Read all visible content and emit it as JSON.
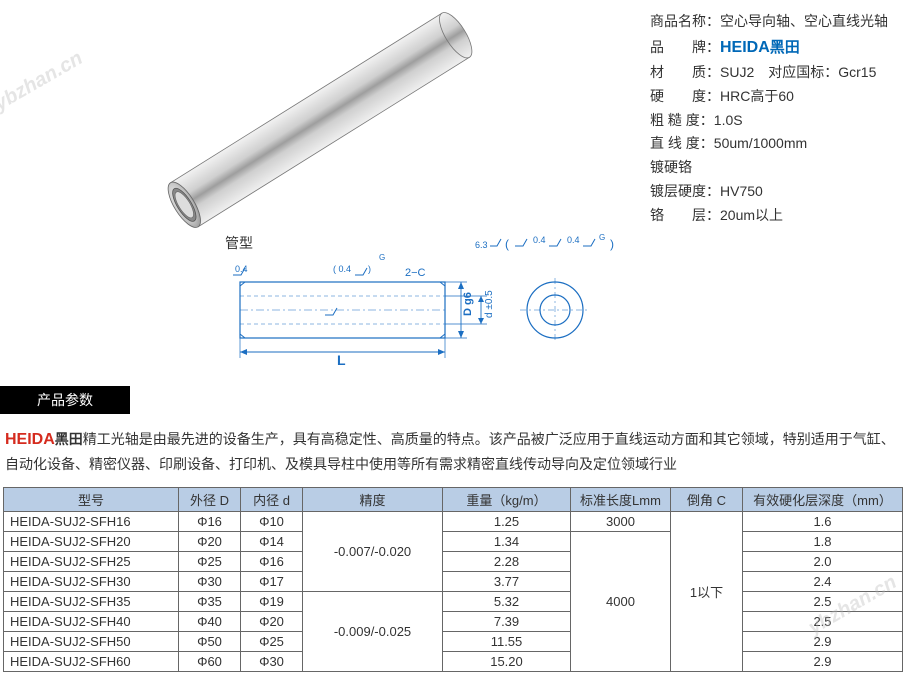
{
  "watermark": "ybzhan.cn",
  "specs": {
    "name_label": "商品名称：",
    "name_value": "空心导向轴、空心直线光轴",
    "brand_label": "品　　牌：",
    "brand_value_blue": "HEIDA",
    "brand_value_black": "黑田",
    "material_label": "材　　质：",
    "material_value": "SUJ2　对应国标：Gcr15",
    "hardness_label": "硬　　度：",
    "hardness_value": "HRC高于60",
    "rough_label": "粗 糙 度：",
    "rough_value": "1.0S",
    "straight_label": "直 线 度：",
    "straight_value": "50um/1000mm",
    "chrome": "镀硬铬",
    "chrome_hardness": "镀层硬度：HV750",
    "chrome_layer": "铬　　层：20um以上"
  },
  "diagram": {
    "type_label": "管型",
    "dim_L": "L",
    "dim_D": "D g6",
    "dim_d": "d ±0.5",
    "chamfer": "2−C",
    "surf1": "0.4",
    "surf2": "0.4",
    "surf3": "6.3",
    "surf4": "0.4",
    "surf5": "0.4",
    "g": "G"
  },
  "params_title": "产品参数",
  "desc": {
    "brand_red": "HEIDA",
    "brand_bold": "黑田",
    "text": "精工光轴是由最先进的设备生产，具有高稳定性、高质量的特点。该产品被广泛应用于直线运动方面和其它领域，特别适用于气缸、自动化设备、精密仪器、印刷设备、打印机、及模具导柱中使用等所有需求精密直线传动导向及定位领域行业"
  },
  "table": {
    "headers": [
      "型号",
      "外径 D",
      "内径 d",
      "精度",
      "重量（kg/m）",
      "标准长度Lmm",
      "倒角 C",
      "有效硬化层深度（mm）"
    ],
    "precision_group1": "-0.007/-0.020",
    "precision_group2": "-0.009/-0.025",
    "length_3000": "3000",
    "length_4000": "4000",
    "chamfer_all": "1以下",
    "rows": [
      {
        "model": "HEIDA-SUJ2-SFH16",
        "D": "Φ16",
        "d": "Φ10",
        "w": "1.25",
        "depth": "1.6"
      },
      {
        "model": "HEIDA-SUJ2-SFH20",
        "D": "Φ20",
        "d": "Φ14",
        "w": "1.34",
        "depth": "1.8"
      },
      {
        "model": "HEIDA-SUJ2-SFH25",
        "D": "Φ25",
        "d": "Φ16",
        "w": "2.28",
        "depth": "2.0"
      },
      {
        "model": "HEIDA-SUJ2-SFH30",
        "D": "Φ30",
        "d": "Φ17",
        "w": "3.77",
        "depth": "2.4"
      },
      {
        "model": "HEIDA-SUJ2-SFH35",
        "D": "Φ35",
        "d": "Φ19",
        "w": "5.32",
        "depth": "2.5"
      },
      {
        "model": "HEIDA-SUJ2-SFH40",
        "D": "Φ40",
        "d": "Φ20",
        "w": "7.39",
        "depth": "2.5"
      },
      {
        "model": "HEIDA-SUJ2-SFH50",
        "D": "Φ50",
        "d": "Φ25",
        "w": "11.55",
        "depth": "2.9"
      },
      {
        "model": "HEIDA-SUJ2-SFH60",
        "D": "Φ60",
        "d": "Φ30",
        "w": "15.20",
        "depth": "2.9"
      }
    ]
  },
  "colors": {
    "header_bg": "#b9cde5",
    "brand_blue": "#0068b7",
    "brand_red": "#d52b1e",
    "dim_blue": "#1b6ec2"
  }
}
